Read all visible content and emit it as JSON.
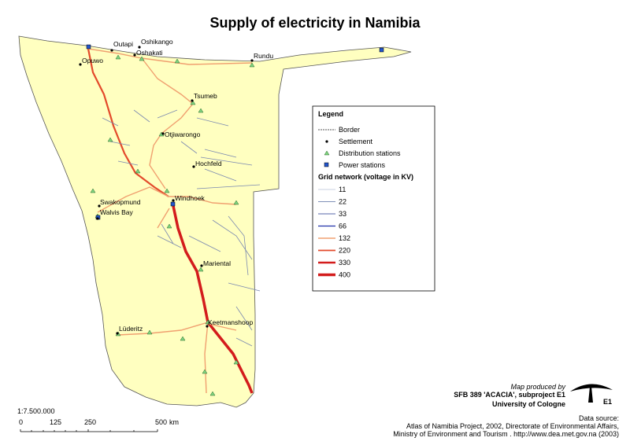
{
  "title": "Supply of electricity in Namibia",
  "places": [
    "Outapi",
    "Oshikango",
    "Oshakati",
    "Opuwo",
    "Rundu",
    "Tsumeb",
    "Otjiwarongo",
    "Hochfeld",
    "Swakopmund",
    "Walvis Bay",
    "Windhoek",
    "Mariental",
    "Keetmanshoop",
    "Lüderitz"
  ],
  "legend": {
    "title": "Legend",
    "items": [
      "Border",
      "Settlement",
      "Distribution stations",
      "Power stations"
    ],
    "grid_title": "Grid network (voltage in KV)",
    "voltages": [
      "11",
      "22",
      "33",
      "66",
      "132",
      "220",
      "330",
      "400"
    ]
  },
  "scale": {
    "ratio": "1:7.500.000",
    "ticks": [
      "0",
      "125",
      "250",
      "500"
    ],
    "unit": "km"
  },
  "credits": {
    "produced_by": "Map produced by",
    "project": "SFB 389 'ACACIA', subproject E1",
    "university": "University of Cologne",
    "logo": "E1",
    "source_title": "Data source:",
    "source_lines": [
      "Atlas of Namibia Project, 2002, Directorate of Environmental Affairs,",
      "Ministry of Environment and Tourism . http://www.dea.met.gov.na (2003)"
    ]
  }
}
